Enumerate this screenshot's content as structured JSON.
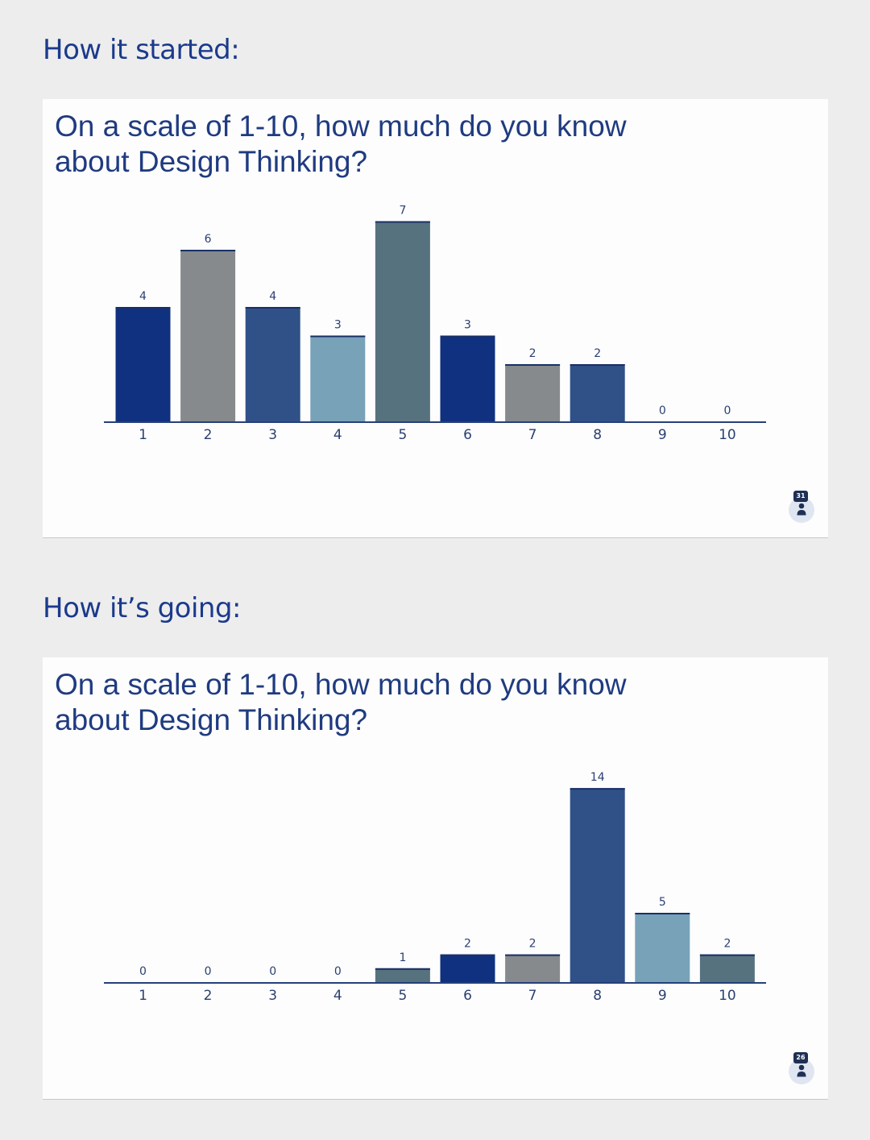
{
  "sections": [
    {
      "heading": "How it started:",
      "question": "On a scale of 1-10, how much do you know about Design Thinking?",
      "respondent_count": "31"
    },
    {
      "heading": "How it’s going:",
      "question": "On a scale of 1-10, how much do you know about Design Thinking?",
      "respondent_count": "26"
    }
  ],
  "colors": {
    "palette": [
      "#10317f",
      "#868a8d",
      "#2f5188",
      "#77a2b8",
      "#57727f"
    ],
    "axis": "#26407a",
    "heading": "#1b3a8c"
  },
  "icons": {
    "respondents": "person-icon"
  },
  "chart_data": [
    {
      "type": "bar",
      "categories": [
        "1",
        "2",
        "3",
        "4",
        "5",
        "6",
        "7",
        "8",
        "9",
        "10"
      ],
      "values": [
        4,
        6,
        4,
        3,
        7,
        3,
        2,
        2,
        0,
        0
      ],
      "title": "On a scale of 1-10, how much do you know about Design Thinking?",
      "xlabel": "",
      "ylabel": "",
      "data_labels": true,
      "grid": false
    },
    {
      "type": "bar",
      "categories": [
        "1",
        "2",
        "3",
        "4",
        "5",
        "6",
        "7",
        "8",
        "9",
        "10"
      ],
      "values": [
        0,
        0,
        0,
        0,
        1,
        2,
        2,
        14,
        5,
        2
      ],
      "title": "On a scale of 1-10, how much do you know about Design Thinking?",
      "xlabel": "",
      "ylabel": "",
      "data_labels": true,
      "grid": false
    }
  ]
}
